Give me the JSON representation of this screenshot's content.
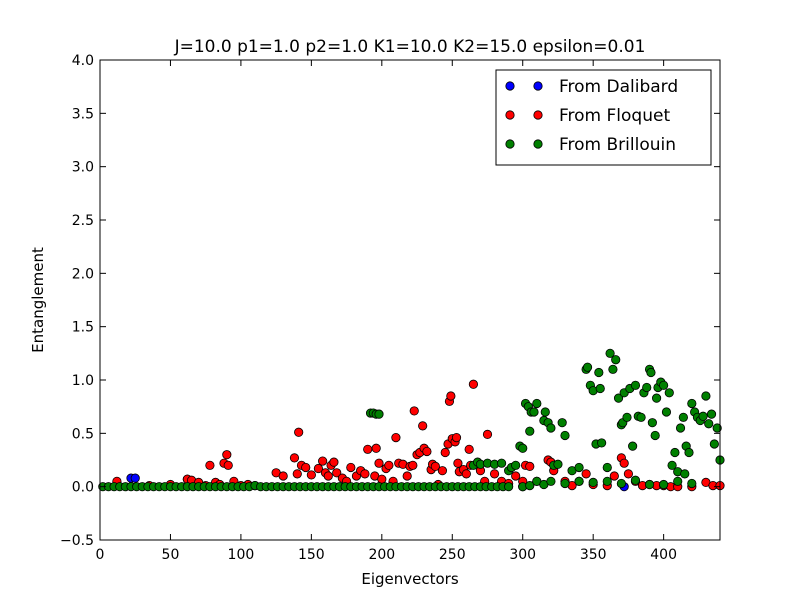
{
  "chart_data": {
    "type": "scatter",
    "title": "J=10.0 p1=1.0 p2=1.0 K1=10.0 K2=15.0 epsilon=0.01",
    "xlabel": "Eigenvectors",
    "ylabel": "Entanglement",
    "xlim": [
      0,
      440
    ],
    "ylim": [
      -0.5,
      4.0
    ],
    "xticks": [
      "0",
      "50",
      "100",
      "150",
      "200",
      "250",
      "300",
      "350",
      "400"
    ],
    "yticks": [
      "−0.5",
      "0.0",
      "0.5",
      "1.0",
      "1.5",
      "2.0",
      "2.5",
      "3.0",
      "3.5",
      "4.0"
    ],
    "legend_position": "top-right",
    "grid": false,
    "series": [
      {
        "name": "From Dalibard",
        "color": "#0000ff",
        "points": [
          [
            22,
            0.08
          ],
          [
            25,
            0.08
          ],
          [
            62,
            0.07
          ],
          [
            300,
            0.0
          ],
          [
            372,
            0.0
          ]
        ]
      },
      {
        "name": "From Floquet",
        "color": "#ff0000",
        "points": [
          [
            12,
            0.05
          ],
          [
            35,
            0.01
          ],
          [
            50,
            0.02
          ],
          [
            62,
            0.07
          ],
          [
            65,
            0.06
          ],
          [
            70,
            0.04
          ],
          [
            75,
            0.01
          ],
          [
            78,
            0.2
          ],
          [
            82,
            0.04
          ],
          [
            85,
            0.02
          ],
          [
            88,
            0.22
          ],
          [
            90,
            0.3
          ],
          [
            91,
            0.2
          ],
          [
            95,
            0.05
          ],
          [
            100,
            0.01
          ],
          [
            105,
            0.02
          ],
          [
            110,
            0.01
          ],
          [
            125,
            0.13
          ],
          [
            130,
            0.1
          ],
          [
            138,
            0.27
          ],
          [
            140,
            0.12
          ],
          [
            141,
            0.51
          ],
          [
            143,
            0.2
          ],
          [
            146,
            0.18
          ],
          [
            150,
            0.11
          ],
          [
            155,
            0.17
          ],
          [
            158,
            0.24
          ],
          [
            160,
            0.13
          ],
          [
            162,
            0.1
          ],
          [
            164,
            0.2
          ],
          [
            166,
            0.23
          ],
          [
            168,
            0.13
          ],
          [
            172,
            0.08
          ],
          [
            175,
            0.05
          ],
          [
            178,
            0.18
          ],
          [
            182,
            0.1
          ],
          [
            185,
            0.15
          ],
          [
            188,
            0.12
          ],
          [
            190,
            0.35
          ],
          [
            195,
            0.1
          ],
          [
            196,
            0.36
          ],
          [
            198,
            0.22
          ],
          [
            200,
            0.07
          ],
          [
            203,
            0.17
          ],
          [
            205,
            0.2
          ],
          [
            208,
            0.05
          ],
          [
            210,
            0.46
          ],
          [
            212,
            0.22
          ],
          [
            215,
            0.21
          ],
          [
            218,
            0.1
          ],
          [
            220,
            0.19
          ],
          [
            222,
            0.2
          ],
          [
            223,
            0.71
          ],
          [
            225,
            0.3
          ],
          [
            227,
            0.32
          ],
          [
            229,
            0.57
          ],
          [
            230,
            0.36
          ],
          [
            232,
            0.33
          ],
          [
            235,
            0.16
          ],
          [
            236,
            0.21
          ],
          [
            238,
            0.19
          ],
          [
            240,
            0.02
          ],
          [
            243,
            0.15
          ],
          [
            245,
            0.32
          ],
          [
            247,
            0.4
          ],
          [
            248,
            0.8
          ],
          [
            249,
            0.85
          ],
          [
            250,
            0.45
          ],
          [
            252,
            0.42
          ],
          [
            253,
            0.46
          ],
          [
            254,
            0.22
          ],
          [
            255,
            0.14
          ],
          [
            258,
            0.16
          ],
          [
            260,
            0.12
          ],
          [
            262,
            0.35
          ],
          [
            263,
            0.2
          ],
          [
            265,
            0.96
          ],
          [
            270,
            0.15
          ],
          [
            273,
            0.05
          ],
          [
            275,
            0.49
          ],
          [
            280,
            0.12
          ],
          [
            285,
            0.05
          ],
          [
            290,
            0.03
          ],
          [
            295,
            0.1
          ],
          [
            300,
            0.05
          ],
          [
            302,
            0.2
          ],
          [
            305,
            0.19
          ],
          [
            310,
            0.05
          ],
          [
            318,
            0.25
          ],
          [
            320,
            0.23
          ],
          [
            322,
            0.15
          ],
          [
            330,
            0.05
          ],
          [
            335,
            0.01
          ],
          [
            340,
            0.05
          ],
          [
            345,
            0.12
          ],
          [
            350,
            0.02
          ],
          [
            360,
            0.01
          ],
          [
            365,
            0.1
          ],
          [
            370,
            0.27
          ],
          [
            372,
            0.22
          ],
          [
            375,
            0.12
          ],
          [
            380,
            0.05
          ],
          [
            385,
            0.01
          ],
          [
            390,
            0.02
          ],
          [
            395,
            0.01
          ],
          [
            400,
            0.01
          ],
          [
            405,
            0.0
          ],
          [
            410,
            0.0
          ],
          [
            420,
            0.0
          ],
          [
            430,
            0.04
          ],
          [
            435,
            0.01
          ],
          [
            440,
            0.01
          ]
        ]
      },
      {
        "name": "From Brillouin",
        "color": "#008000",
        "points": [
          [
            2,
            0.0
          ],
          [
            6,
            0.0
          ],
          [
            10,
            0.0
          ],
          [
            14,
            0.0
          ],
          [
            18,
            0.0
          ],
          [
            22,
            0.0
          ],
          [
            26,
            0.0
          ],
          [
            30,
            0.0
          ],
          [
            34,
            0.0
          ],
          [
            38,
            0.0
          ],
          [
            42,
            0.0
          ],
          [
            46,
            0.0
          ],
          [
            50,
            0.0
          ],
          [
            54,
            0.0
          ],
          [
            58,
            0.0
          ],
          [
            62,
            0.0
          ],
          [
            66,
            0.0
          ],
          [
            70,
            0.0
          ],
          [
            74,
            0.0
          ],
          [
            78,
            0.0
          ],
          [
            82,
            0.0
          ],
          [
            86,
            0.0
          ],
          [
            90,
            0.0
          ],
          [
            94,
            0.0
          ],
          [
            98,
            0.0
          ],
          [
            102,
            0.0
          ],
          [
            106,
            0.0
          ],
          [
            110,
            0.01
          ],
          [
            114,
            0.0
          ],
          [
            118,
            0.0
          ],
          [
            122,
            0.0
          ],
          [
            126,
            0.0
          ],
          [
            130,
            0.0
          ],
          [
            134,
            0.0
          ],
          [
            138,
            0.0
          ],
          [
            142,
            0.0
          ],
          [
            146,
            0.0
          ],
          [
            150,
            0.0
          ],
          [
            154,
            0.0
          ],
          [
            158,
            0.0
          ],
          [
            162,
            0.0
          ],
          [
            166,
            0.0
          ],
          [
            170,
            0.0
          ],
          [
            174,
            0.0
          ],
          [
            178,
            0.0
          ],
          [
            182,
            0.0
          ],
          [
            186,
            0.0
          ],
          [
            190,
            0.0
          ],
          [
            194,
            0.0
          ],
          [
            198,
            0.0
          ],
          [
            202,
            0.0
          ],
          [
            206,
            0.0
          ],
          [
            210,
            0.0
          ],
          [
            214,
            0.0
          ],
          [
            218,
            0.0
          ],
          [
            222,
            0.0
          ],
          [
            226,
            0.0
          ],
          [
            230,
            0.0
          ],
          [
            234,
            0.0
          ],
          [
            238,
            0.0
          ],
          [
            242,
            0.0
          ],
          [
            246,
            0.0
          ],
          [
            250,
            0.0
          ],
          [
            254,
            0.0
          ],
          [
            258,
            0.0
          ],
          [
            262,
            0.0
          ],
          [
            266,
            0.0
          ],
          [
            270,
            0.0
          ],
          [
            274,
            0.0
          ],
          [
            278,
            0.0
          ],
          [
            282,
            0.0
          ],
          [
            286,
            0.0
          ],
          [
            290,
            0.0
          ],
          [
            192,
            0.69
          ],
          [
            194,
            0.69
          ],
          [
            196,
            0.68
          ],
          [
            198,
            0.68
          ],
          [
            265,
            0.2
          ],
          [
            268,
            0.23
          ],
          [
            270,
            0.21
          ],
          [
            275,
            0.22
          ],
          [
            280,
            0.21
          ],
          [
            285,
            0.22
          ],
          [
            290,
            0.15
          ],
          [
            292,
            0.18
          ],
          [
            295,
            0.2
          ],
          [
            298,
            0.38
          ],
          [
            300,
            0.36
          ],
          [
            302,
            0.78
          ],
          [
            304,
            0.75
          ],
          [
            305,
            0.52
          ],
          [
            306,
            0.7
          ],
          [
            308,
            0.7
          ],
          [
            310,
            0.78
          ],
          [
            315,
            0.62
          ],
          [
            316,
            0.7
          ],
          [
            318,
            0.6
          ],
          [
            320,
            0.55
          ],
          [
            322,
            0.2
          ],
          [
            325,
            0.21
          ],
          [
            328,
            0.6
          ],
          [
            330,
            0.48
          ],
          [
            335,
            0.15
          ],
          [
            340,
            0.18
          ],
          [
            345,
            1.1
          ],
          [
            346,
            1.12
          ],
          [
            348,
            0.95
          ],
          [
            350,
            0.9
          ],
          [
            352,
            0.4
          ],
          [
            354,
            1.07
          ],
          [
            355,
            0.92
          ],
          [
            356,
            0.41
          ],
          [
            360,
            0.18
          ],
          [
            362,
            1.25
          ],
          [
            364,
            1.1
          ],
          [
            366,
            1.19
          ],
          [
            368,
            0.83
          ],
          [
            370,
            0.58
          ],
          [
            371,
            0.6
          ],
          [
            372,
            0.88
          ],
          [
            374,
            0.65
          ],
          [
            376,
            0.92
          ],
          [
            378,
            0.38
          ],
          [
            380,
            0.95
          ],
          [
            382,
            0.66
          ],
          [
            384,
            0.65
          ],
          [
            386,
            0.88
          ],
          [
            388,
            0.93
          ],
          [
            390,
            1.1
          ],
          [
            391,
            1.07
          ],
          [
            392,
            0.6
          ],
          [
            394,
            0.48
          ],
          [
            395,
            0.83
          ],
          [
            396,
            0.93
          ],
          [
            398,
            0.98
          ],
          [
            400,
            0.95
          ],
          [
            402,
            0.7
          ],
          [
            404,
            0.88
          ],
          [
            406,
            0.2
          ],
          [
            408,
            0.32
          ],
          [
            410,
            0.14
          ],
          [
            412,
            0.55
          ],
          [
            414,
            0.65
          ],
          [
            416,
            0.38
          ],
          [
            418,
            0.32
          ],
          [
            420,
            0.78
          ],
          [
            422,
            0.7
          ],
          [
            424,
            0.65
          ],
          [
            426,
            0.62
          ],
          [
            428,
            0.66
          ],
          [
            430,
            0.85
          ],
          [
            432,
            0.59
          ],
          [
            434,
            0.68
          ],
          [
            436,
            0.4
          ],
          [
            438,
            0.55
          ],
          [
            440,
            0.25
          ],
          [
            300,
            0.0
          ],
          [
            305,
            0.01
          ],
          [
            310,
            0.05
          ],
          [
            315,
            0.02
          ],
          [
            320,
            0.05
          ],
          [
            330,
            0.03
          ],
          [
            340,
            0.05
          ],
          [
            350,
            0.04
          ],
          [
            360,
            0.05
          ],
          [
            370,
            0.03
          ],
          [
            380,
            0.06
          ],
          [
            390,
            0.02
          ],
          [
            400,
            0.02
          ],
          [
            410,
            0.05
          ],
          [
            415,
            0.12
          ],
          [
            420,
            0.03
          ]
        ]
      }
    ]
  }
}
